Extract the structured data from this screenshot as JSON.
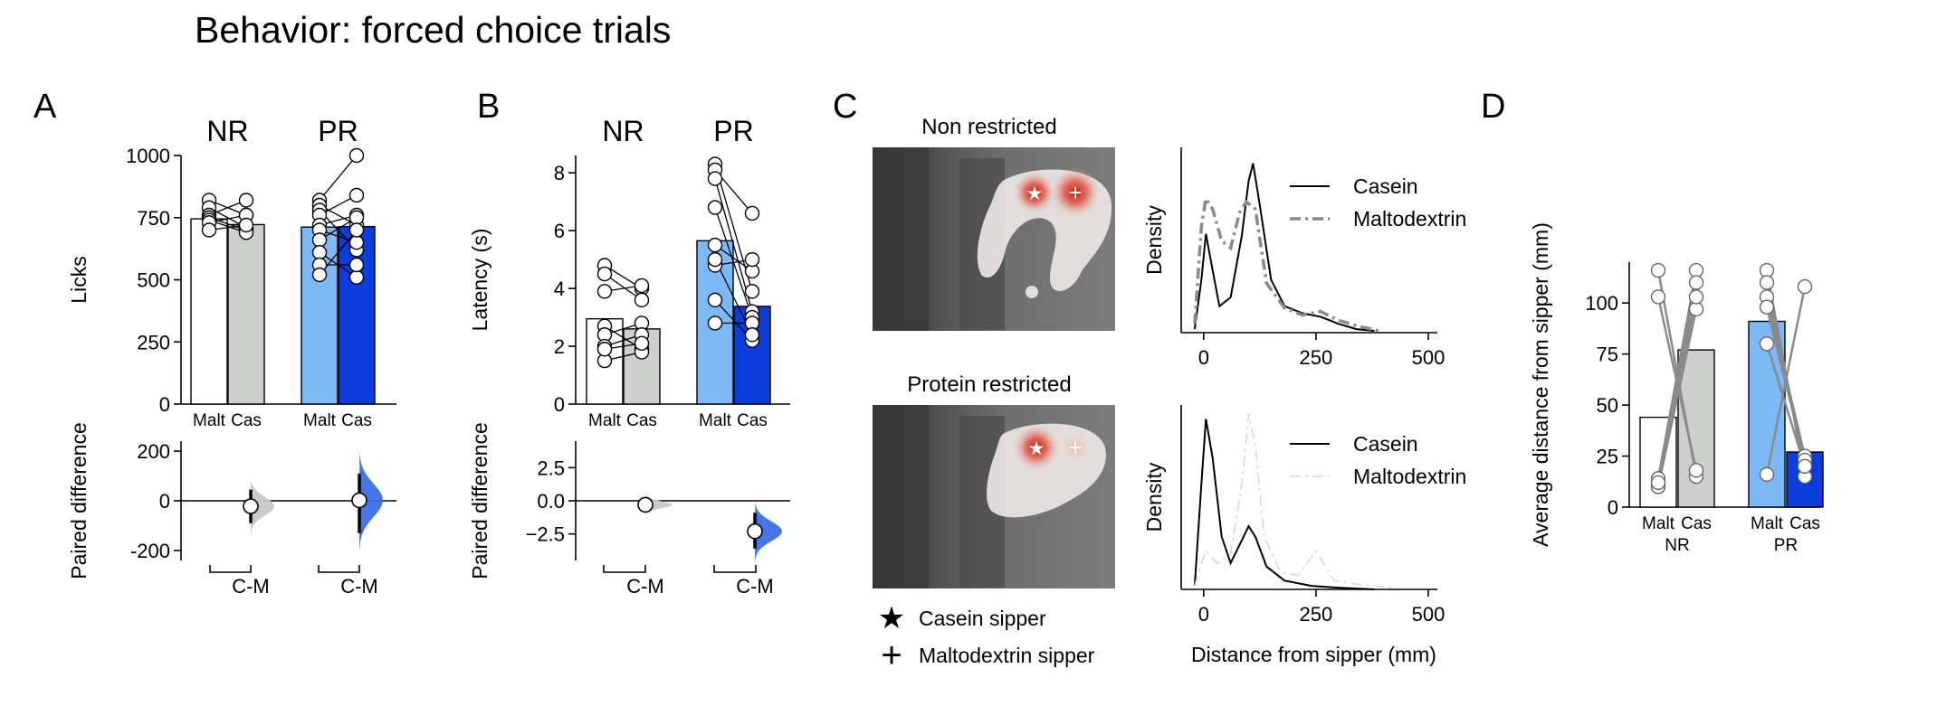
{
  "figure_title": "Behavior: forced choice trials",
  "colors": {
    "malt_nr": "#ffffff",
    "cas_nr": "#cccfcc",
    "malt_pr": "#7db9f7",
    "cas_pr": "#0a3ddb",
    "nr_kde": "#c8c8c8",
    "pr_kde": "#3a6fe8",
    "line_gray": "#888888",
    "heat_red": "#d01e12"
  },
  "panels": {
    "A": {
      "letter": "A"
    },
    "B": {
      "letter": "B"
    },
    "C": {
      "letter": "C"
    },
    "D": {
      "letter": "D"
    }
  },
  "chart_data": [
    {
      "id": "A-top",
      "type": "bar",
      "group_labels": [
        "NR",
        "PR"
      ],
      "categories": [
        "Malt",
        "Cas",
        "Malt",
        "Cas"
      ],
      "values": [
        745,
        722,
        712,
        714
      ],
      "ylabel": "Licks",
      "ylim": [
        0,
        1000
      ],
      "yticks": [
        0,
        250,
        500,
        750,
        1000
      ],
      "paired": [
        {
          "group": "NR",
          "pairs": [
            [
              820,
              760
            ],
            [
              790,
              710
            ],
            [
              760,
              820
            ],
            [
              750,
              700
            ],
            [
              740,
              690
            ],
            [
              730,
              760
            ],
            [
              700,
              720
            ]
          ]
        },
        {
          "group": "PR",
          "pairs": [
            [
              820,
              1000
            ],
            [
              800,
              720
            ],
            [
              780,
              620
            ],
            [
              760,
              840
            ],
            [
              720,
              760
            ],
            [
              700,
              650
            ],
            [
              660,
              750
            ],
            [
              610,
              510
            ],
            [
              560,
              560
            ],
            [
              520,
              700
            ]
          ]
        }
      ]
    },
    {
      "id": "A-bottom",
      "type": "scatter",
      "ylabel": "Paired difference",
      "categories": [
        "C-M",
        "C-M"
      ],
      "ylim": [
        -240,
        240
      ],
      "yticks": [
        -200,
        0,
        200
      ],
      "estimates": [
        {
          "group": "NR",
          "mean": -22,
          "ci": [
            -90,
            45
          ]
        },
        {
          "group": "PR",
          "mean": 2,
          "ci": [
            -130,
            110
          ]
        }
      ]
    },
    {
      "id": "B-top",
      "type": "bar",
      "group_labels": [
        "NR",
        "PR"
      ],
      "categories": [
        "Malt",
        "Cas",
        "Malt",
        "Cas"
      ],
      "values": [
        2.95,
        2.6,
        5.65,
        3.38
      ],
      "ylabel": "Latency (s)",
      "ylim": [
        0,
        8.6
      ],
      "yticks": [
        0,
        2,
        4,
        6,
        8
      ],
      "paired": [
        {
          "group": "NR",
          "pairs": [
            [
              4.8,
              4.0
            ],
            [
              4.5,
              3.6
            ],
            [
              3.9,
              4.1
            ],
            [
              2.7,
              1.9
            ],
            [
              2.4,
              2.8
            ],
            [
              2.0,
              2.4
            ],
            [
              1.5,
              1.8
            ],
            [
              1.9,
              2.1
            ]
          ]
        },
        {
          "group": "PR",
          "pairs": [
            [
              8.3,
              3.9
            ],
            [
              8.1,
              6.6
            ],
            [
              7.8,
              3.2
            ],
            [
              6.8,
              3.0
            ],
            [
              5.5,
              4.6
            ],
            [
              4.8,
              5.0
            ],
            [
              3.6,
              2.2
            ],
            [
              2.8,
              2.8
            ],
            [
              5.0,
              2.4
            ]
          ]
        }
      ]
    },
    {
      "id": "B-bottom",
      "type": "scatter",
      "ylabel": "Paired difference",
      "categories": [
        "C-M",
        "C-M"
      ],
      "ylim": [
        -4.5,
        4.5
      ],
      "yticks": [
        -2.5,
        0.0,
        2.5
      ],
      "yticklabels": [
        "−2.5",
        "0.0",
        "2.5"
      ],
      "estimates": [
        {
          "group": "NR",
          "mean": -0.3,
          "ci": [
            -0.75,
            0.2
          ]
        },
        {
          "group": "PR",
          "mean": -2.3,
          "ci": [
            -3.6,
            -0.9
          ]
        }
      ]
    },
    {
      "id": "C-nr",
      "type": "line",
      "map_title": "Non restricted",
      "ylabel": "Density",
      "xlim": [
        -50,
        500
      ],
      "xticks": [
        0,
        250,
        500
      ],
      "series": [
        {
          "name": "Casein",
          "style": "solid",
          "points": [
            [
              -20,
              0.02
            ],
            [
              -5,
              0.3
            ],
            [
              5,
              0.56
            ],
            [
              15,
              0.42
            ],
            [
              35,
              0.15
            ],
            [
              60,
              0.2
            ],
            [
              85,
              0.55
            ],
            [
              100,
              0.86
            ],
            [
              110,
              0.96
            ],
            [
              125,
              0.72
            ],
            [
              150,
              0.3
            ],
            [
              180,
              0.15
            ],
            [
              220,
              0.11
            ],
            [
              260,
              0.09
            ],
            [
              300,
              0.05
            ],
            [
              340,
              0.02
            ],
            [
              380,
              0.01
            ]
          ]
        },
        {
          "name": "Maltodextrin",
          "style": "dashed",
          "points": [
            [
              -20,
              0.05
            ],
            [
              -5,
              0.6
            ],
            [
              5,
              0.76
            ],
            [
              20,
              0.7
            ],
            [
              40,
              0.52
            ],
            [
              60,
              0.48
            ],
            [
              80,
              0.68
            ],
            [
              95,
              0.74
            ],
            [
              115,
              0.7
            ],
            [
              140,
              0.28
            ],
            [
              180,
              0.14
            ],
            [
              220,
              0.1
            ],
            [
              260,
              0.12
            ],
            [
              300,
              0.07
            ],
            [
              340,
              0.04
            ],
            [
              390,
              0.01
            ]
          ]
        }
      ]
    },
    {
      "id": "C-pr",
      "type": "line",
      "map_title": "Protein restricted",
      "ylabel": "Density",
      "xlabel": "Distance from sipper (mm)",
      "xlim": [
        -50,
        500
      ],
      "xticks": [
        0,
        250,
        500
      ],
      "series": [
        {
          "name": "Casein",
          "style": "solid",
          "points": [
            [
              -20,
              0.02
            ],
            [
              -5,
              0.6
            ],
            [
              5,
              0.97
            ],
            [
              20,
              0.75
            ],
            [
              40,
              0.3
            ],
            [
              60,
              0.15
            ],
            [
              85,
              0.28
            ],
            [
              100,
              0.36
            ],
            [
              115,
              0.3
            ],
            [
              140,
              0.13
            ],
            [
              180,
              0.05
            ],
            [
              240,
              0.02
            ],
            [
              300,
              0.01
            ],
            [
              380,
              0.0
            ]
          ]
        },
        {
          "name": "Maltodextrin",
          "style": "dashed",
          "points": [
            [
              -20,
              0.02
            ],
            [
              -5,
              0.15
            ],
            [
              5,
              0.22
            ],
            [
              30,
              0.15
            ],
            [
              60,
              0.2
            ],
            [
              85,
              0.6
            ],
            [
              100,
              1.0
            ],
            [
              115,
              0.82
            ],
            [
              135,
              0.3
            ],
            [
              170,
              0.1
            ],
            [
              210,
              0.08
            ],
            [
              250,
              0.22
            ],
            [
              290,
              0.05
            ],
            [
              340,
              0.03
            ],
            [
              420,
              0.01
            ]
          ]
        }
      ]
    },
    {
      "id": "D",
      "type": "bar",
      "group_labels": [
        "NR",
        "PR"
      ],
      "categories": [
        "Malt",
        "Cas",
        "Malt",
        "Cas"
      ],
      "values": [
        44,
        77,
        91,
        27
      ],
      "ylabel": "Average distance from sipper (mm)",
      "ylim": [
        0,
        120
      ],
      "yticks": [
        0,
        25,
        50,
        75,
        100
      ],
      "paired": [
        {
          "group": "NR",
          "pairs": [
            [
              116,
              15
            ],
            [
              103,
              18
            ],
            [
              14,
              116
            ],
            [
              10,
              110
            ],
            [
              10,
              97
            ],
            [
              12,
              103
            ]
          ]
        },
        {
          "group": "PR",
          "pairs": [
            [
              116,
              15
            ],
            [
              110,
              20
            ],
            [
              103,
              25
            ],
            [
              98,
              23
            ],
            [
              80,
              20
            ],
            [
              16,
              108
            ]
          ]
        }
      ]
    }
  ],
  "heatmap_legend": [
    {
      "symbol": "★",
      "label": "Casein sipper"
    },
    {
      "symbol": "+",
      "label": "Maltodextrin sipper"
    }
  ]
}
